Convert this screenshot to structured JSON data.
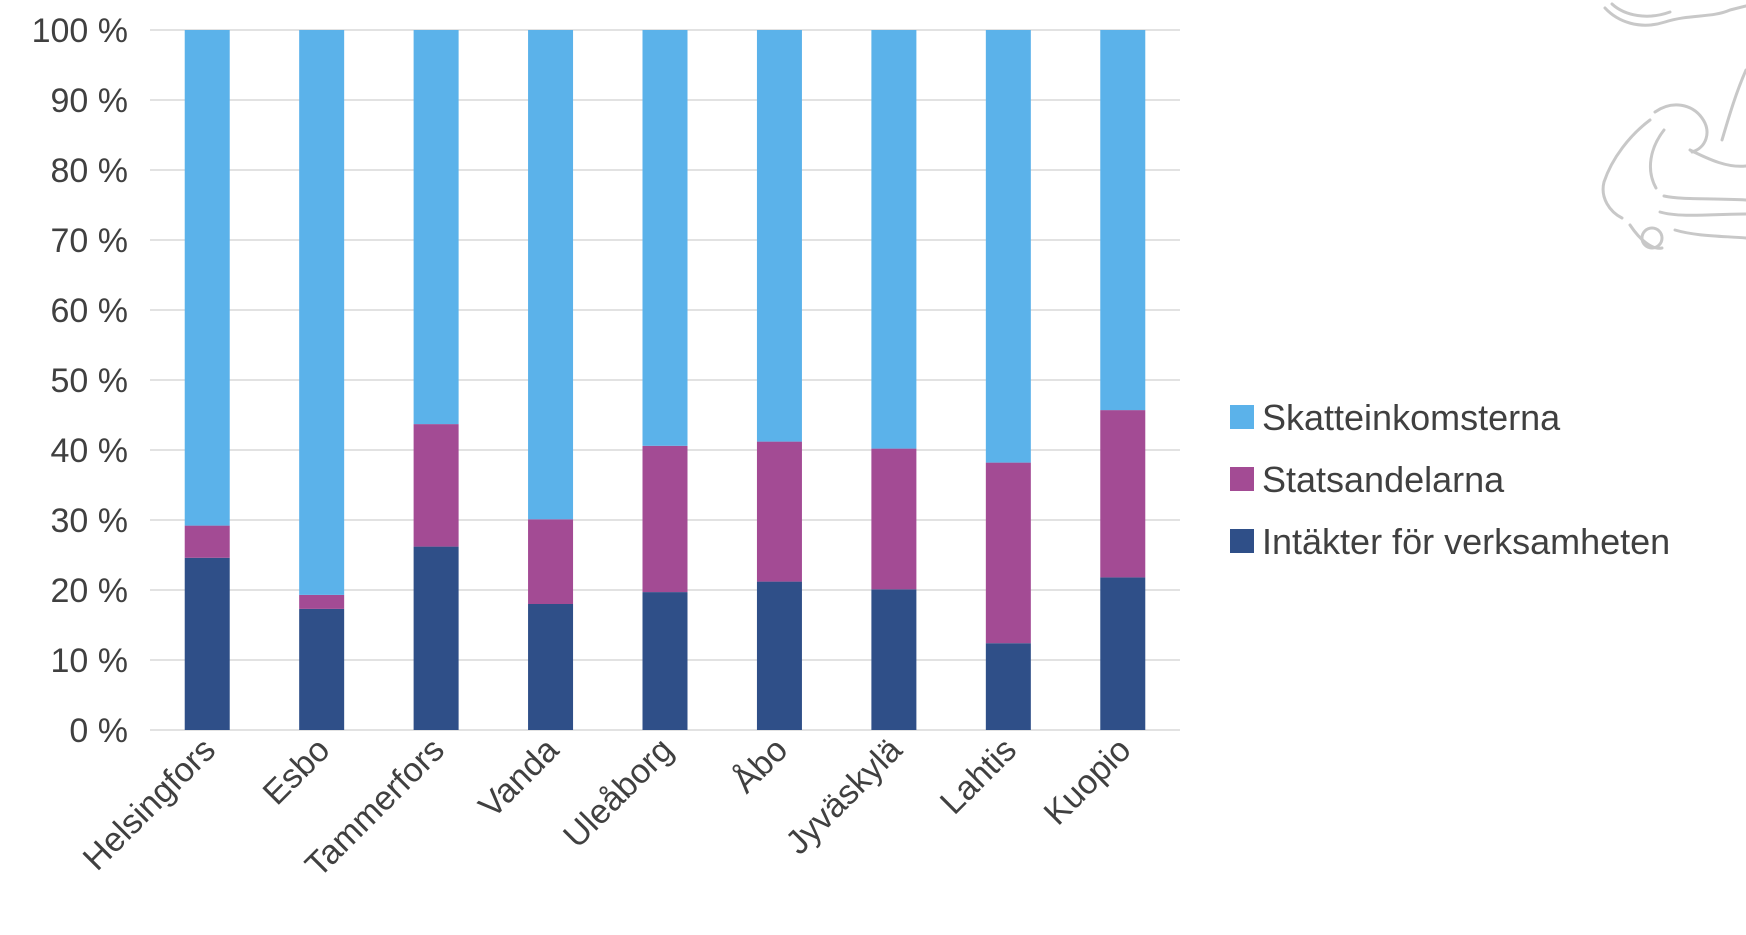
{
  "chart_data": {
    "type": "bar",
    "stacked": true,
    "percent_stacked": true,
    "categories": [
      "Helsingfors",
      "Esbo",
      "Tammerfors",
      "Vanda",
      "Uleåborg",
      "Åbo",
      "Jyväskylä",
      "Lahtis",
      "Kuopio"
    ],
    "series": [
      {
        "name": "Intäkter för verksamheten",
        "color": "#2f4f88",
        "values": [
          24.6,
          17.3,
          26.2,
          18.0,
          19.7,
          21.2,
          20.1,
          12.4,
          21.8
        ]
      },
      {
        "name": "Statsandelarna",
        "color": "#a34b94",
        "values": [
          4.6,
          2.0,
          17.5,
          12.1,
          20.9,
          20.0,
          20.1,
          25.8,
          23.9
        ]
      },
      {
        "name": "Skatteinkomsterna",
        "color": "#5bb2ea",
        "values": [
          70.8,
          80.7,
          56.3,
          69.9,
          59.4,
          58.8,
          59.8,
          61.8,
          54.3
        ]
      }
    ],
    "y_ticks": [
      "0 %",
      "10 %",
      "20 %",
      "30 %",
      "40 %",
      "50 %",
      "60 %",
      "70 %",
      "80 %",
      "90 %",
      "100 %"
    ],
    "ylim": [
      0,
      100
    ],
    "grid": true,
    "legend_position": "right",
    "legend_order": [
      "Skatteinkomsterna",
      "Statsandelarna",
      "Intäkter för verksamheten"
    ]
  },
  "decoration": {
    "icon": "finnish-lion-emblem-watermark"
  }
}
